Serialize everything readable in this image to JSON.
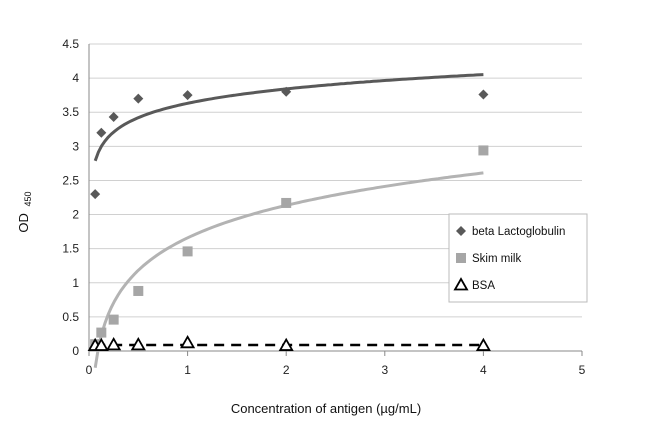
{
  "chart_data": {
    "type": "scatter",
    "title": "",
    "xlabel": "Concentration of antigen (µg/mL)",
    "ylabel_main": "OD",
    "ylabel_sub": "450",
    "xlim": [
      0,
      5
    ],
    "ylim": [
      0,
      4.5
    ],
    "x_ticks": [
      "0",
      "1",
      "2",
      "3",
      "4",
      "5"
    ],
    "y_ticks": [
      "0",
      "0.5",
      "1",
      "1.5",
      "2",
      "2.5",
      "3",
      "3.5",
      "4",
      "4.5"
    ],
    "grid": "horizontal",
    "legend_position": "right",
    "series": [
      {
        "name": "beta Lactoglobulin",
        "marker": "diamond",
        "color": "#595959",
        "x": [
          0.0625,
          0.125,
          0.25,
          0.5,
          1,
          2,
          4
        ],
        "y": [
          2.3,
          3.2,
          3.43,
          3.7,
          3.75,
          3.8,
          3.76
        ],
        "trend": "log",
        "trend_color": "#595959"
      },
      {
        "name": "Skim milk",
        "marker": "square",
        "color": "#a6a6a6",
        "x": [
          0.0625,
          0.125,
          0.25,
          0.5,
          1,
          2,
          4
        ],
        "y": [
          0.1,
          0.27,
          0.46,
          0.88,
          1.46,
          2.17,
          2.94
        ],
        "trend": "log",
        "trend_color": "#b3b3b3"
      },
      {
        "name": "BSA",
        "marker": "triangle",
        "color": "#000000",
        "x": [
          0.0625,
          0.125,
          0.25,
          0.5,
          1,
          2,
          4
        ],
        "y": [
          0.08,
          0.08,
          0.09,
          0.09,
          0.12,
          0.08,
          0.08
        ],
        "trend": "flat-dashed",
        "trend_color": "#000000"
      }
    ]
  }
}
